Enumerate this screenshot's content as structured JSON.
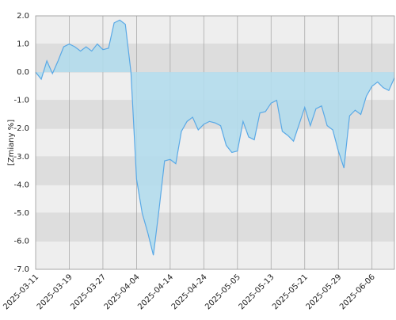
{
  "chart_data": {
    "type": "area",
    "y_label": "[Zmiany %]",
    "categories": [
      "2025-03-11",
      null,
      null,
      null,
      null,
      null,
      "2025-03-19",
      null,
      null,
      null,
      null,
      null,
      "2025-03-27",
      null,
      null,
      null,
      null,
      null,
      "2025-04-04",
      null,
      null,
      null,
      null,
      null,
      "2025-04-14",
      null,
      null,
      null,
      null,
      null,
      "2025-04-24",
      null,
      null,
      null,
      null,
      null,
      "2025-05-05",
      null,
      null,
      null,
      null,
      null,
      "2025-05-13",
      null,
      null,
      null,
      null,
      null,
      "2025-05-21",
      null,
      null,
      null,
      null,
      null,
      "2025-05-29",
      null,
      null,
      null,
      null,
      null,
      "2025-06-06",
      null,
      null,
      null,
      null
    ],
    "values": [
      0,
      -0.25,
      0.4,
      -0.05,
      0.4,
      0.9,
      1.0,
      0.9,
      0.75,
      0.9,
      0.75,
      1.0,
      0.8,
      0.85,
      1.75,
      1.85,
      1.7,
      0,
      -3.8,
      -5.0,
      -5.7,
      -6.5,
      -4.9,
      -3.15,
      -3.1,
      -3.25,
      -2.1,
      -1.75,
      -1.6,
      -2.05,
      -1.85,
      -1.75,
      -1.8,
      -1.9,
      -2.6,
      -2.85,
      -2.8,
      -1.75,
      -2.3,
      -2.4,
      -1.45,
      -1.4,
      -1.1,
      -1.0,
      -2.1,
      -2.25,
      -2.45,
      -1.85,
      -1.25,
      -1.9,
      -1.3,
      -1.2,
      -1.9,
      -2.05,
      -2.8,
      -3.4,
      -1.55,
      -1.35,
      -1.5,
      -0.85,
      -0.5,
      -0.35,
      -0.55,
      -0.65,
      -0.2
    ],
    "color": "#5aa9e6",
    "fill": "#b3dcec",
    "ylim": [
      -7.0,
      2.0
    ],
    "yticks": [
      {
        "value": -7,
        "label": "-7.0"
      },
      {
        "value": -6,
        "label": "-6.0"
      },
      {
        "value": -5,
        "label": "-5.0"
      },
      {
        "value": -4,
        "label": "-4.0"
      },
      {
        "value": -3,
        "label": "-3.0"
      },
      {
        "value": -2,
        "label": "-2.0"
      },
      {
        "value": -1,
        "label": "-1.0"
      },
      {
        "value": 0,
        "label": "0.0"
      },
      {
        "value": 1,
        "label": "1.0"
      },
      {
        "value": 2,
        "label": "2.0"
      }
    ],
    "grid": true
  }
}
